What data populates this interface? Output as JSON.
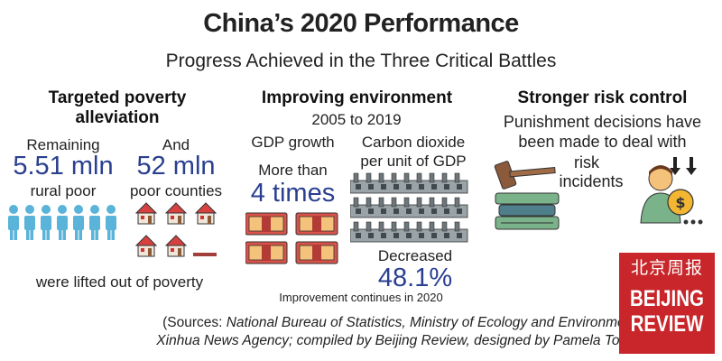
{
  "title": "China’s 2020 Performance",
  "subtitle": "Progress Achieved in the Three Critical Battles",
  "poverty": {
    "heading_line1": "Targeted poverty",
    "heading_line2": "alleviation",
    "remaining_label": "Remaining",
    "rural_value": "5.51 mln",
    "rural_label": "rural poor",
    "and_label": "And",
    "counties_value": "52 mln",
    "counties_label": "poor counties",
    "footer": "were lifted out of poverty"
  },
  "environment": {
    "heading": "Improving environment",
    "period": "2005 to 2019",
    "gdp_label": "GDP growth",
    "gdp_prefix": "More than",
    "gdp_value": "4 times",
    "co2_line1": "Carbon dioxide",
    "co2_line2": "per unit of GDP",
    "co2_prefix": "Decreased",
    "co2_value": "48.1%",
    "note": "Improvement continues in 2020"
  },
  "risk": {
    "heading": "Stronger risk control",
    "line1": "Punishment decisions have",
    "line2": "been made to deal with",
    "line3": "risk",
    "line4": "incidents"
  },
  "sources": {
    "open": "(Sources: ",
    "italic1": "National Bureau of Statistics, Ministry of Ecology and Environment,",
    "italic2": "Xinhua News Agency; compiled by Beijing Review, designed by Pamela Tobey",
    "close": ")"
  },
  "logo": {
    "chinese": "北京周报",
    "line1": "BEIJING",
    "line2": "REVIEW"
  },
  "colors": {
    "accent_blue": "#2a3f8f",
    "people_blue": "#5ab3d8",
    "logo_red": "#c8262a"
  }
}
